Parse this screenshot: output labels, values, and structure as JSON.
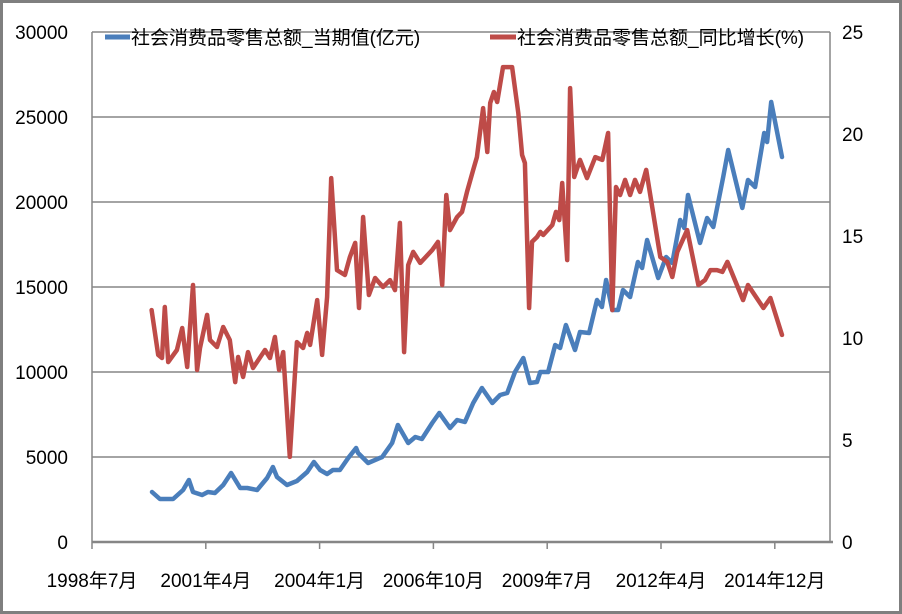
{
  "chart_data": {
    "type": "line",
    "title": "",
    "legend_position": "top",
    "grid": true,
    "x_axis": {
      "ticks": [
        {
          "value": 1998.5,
          "label": "1998年7月"
        },
        {
          "value": 2001.25,
          "label": "2001年4月"
        },
        {
          "value": 2004.0,
          "label": "2004年1月"
        },
        {
          "value": 2006.75,
          "label": "2006年10月"
        },
        {
          "value": 2009.5,
          "label": "2009年7月"
        },
        {
          "value": 2012.25,
          "label": "2012年4月"
        },
        {
          "value": 2015.0,
          "label": "2014年12月"
        }
      ],
      "range": [
        1998.5,
        2016.33
      ]
    },
    "y_left": {
      "range": [
        0,
        30000
      ],
      "ticks": [
        "0",
        "5000",
        "10000",
        "15000",
        "20000",
        "25000",
        "30000"
      ]
    },
    "y_right": {
      "range": [
        0,
        25
      ],
      "ticks": [
        "0",
        "5",
        "10",
        "15",
        "20",
        "25"
      ]
    },
    "colors": {
      "retail": "#4a7ebb",
      "growth": "#be4b48",
      "grid": "#868686"
    },
    "series": [
      {
        "name": "社会消费品零售总额_当期值(亿元)",
        "axis": "left",
        "color": "#4a7ebb",
        "points": [
          [
            1999.95,
            2941
          ],
          [
            2000.14,
            2529
          ],
          [
            2000.46,
            2529
          ],
          [
            2000.7,
            3059
          ],
          [
            2000.84,
            3647
          ],
          [
            2000.94,
            2941
          ],
          [
            2001.16,
            2765
          ],
          [
            2001.3,
            2941
          ],
          [
            2001.47,
            2882
          ],
          [
            2001.67,
            3353
          ],
          [
            2001.86,
            4059
          ],
          [
            2002.08,
            3176
          ],
          [
            2002.25,
            3176
          ],
          [
            2002.49,
            3059
          ],
          [
            2002.73,
            3765
          ],
          [
            2002.87,
            4412
          ],
          [
            2002.97,
            3824
          ],
          [
            2003.21,
            3353
          ],
          [
            2003.45,
            3588
          ],
          [
            2003.7,
            4118
          ],
          [
            2003.86,
            4706
          ],
          [
            2004.01,
            4235
          ],
          [
            2004.18,
            4000
          ],
          [
            2004.32,
            4235
          ],
          [
            2004.49,
            4235
          ],
          [
            2004.69,
            4941
          ],
          [
            2004.88,
            5529
          ],
          [
            2004.93,
            5235
          ],
          [
            2005.17,
            4647
          ],
          [
            2005.51,
            5000
          ],
          [
            2005.75,
            5823
          ],
          [
            2005.89,
            6882
          ],
          [
            2006.14,
            5823
          ],
          [
            2006.31,
            6176
          ],
          [
            2006.47,
            6059
          ],
          [
            2006.72,
            7000
          ],
          [
            2006.89,
            7588
          ],
          [
            2007.15,
            6706
          ],
          [
            2007.32,
            7176
          ],
          [
            2007.51,
            7059
          ],
          [
            2007.71,
            8176
          ],
          [
            2007.92,
            9059
          ],
          [
            2008.17,
            8176
          ],
          [
            2008.36,
            8647
          ],
          [
            2008.53,
            8765
          ],
          [
            2008.72,
            10000
          ],
          [
            2008.92,
            10823
          ],
          [
            2009.08,
            9353
          ],
          [
            2009.25,
            9412
          ],
          [
            2009.33,
            10000
          ],
          [
            2009.52,
            10000
          ],
          [
            2009.69,
            11588
          ],
          [
            2009.81,
            11412
          ],
          [
            2009.95,
            12765
          ],
          [
            2010.17,
            11294
          ],
          [
            2010.29,
            12353
          ],
          [
            2010.51,
            12294
          ],
          [
            2010.7,
            14235
          ],
          [
            2010.82,
            13823
          ],
          [
            2010.92,
            15412
          ],
          [
            2011.07,
            13647
          ],
          [
            2011.21,
            13647
          ],
          [
            2011.33,
            14824
          ],
          [
            2011.5,
            14412
          ],
          [
            2011.69,
            16470
          ],
          [
            2011.79,
            16117
          ],
          [
            2011.91,
            17764
          ],
          [
            2012.18,
            15529
          ],
          [
            2012.37,
            16764
          ],
          [
            2012.52,
            16411
          ],
          [
            2012.71,
            18941
          ],
          [
            2012.81,
            18470
          ],
          [
            2012.9,
            20411
          ],
          [
            2013.19,
            17588
          ],
          [
            2013.36,
            19058
          ],
          [
            2013.51,
            18529
          ],
          [
            2013.75,
            21470
          ],
          [
            2013.87,
            23058
          ],
          [
            2014.21,
            19647
          ],
          [
            2014.35,
            21293
          ],
          [
            2014.52,
            20882
          ],
          [
            2014.74,
            24058
          ],
          [
            2014.81,
            23529
          ],
          [
            2014.91,
            25882
          ],
          [
            2015.17,
            22646
          ]
        ]
      },
      {
        "name": "社会消费品零售总额_同比增长(%)",
        "axis": "right",
        "color": "#be4b48",
        "points": [
          [
            1999.94,
            11.37
          ],
          [
            2000.1,
            9.17
          ],
          [
            2000.19,
            9.02
          ],
          [
            2000.26,
            11.52
          ],
          [
            2000.34,
            8.82
          ],
          [
            2000.55,
            9.41
          ],
          [
            2000.68,
            10.49
          ],
          [
            2000.8,
            8.58
          ],
          [
            2000.94,
            12.6
          ],
          [
            2001.04,
            8.43
          ],
          [
            2001.11,
            9.51
          ],
          [
            2001.28,
            11.13
          ],
          [
            2001.35,
            9.9
          ],
          [
            2001.52,
            9.56
          ],
          [
            2001.67,
            10.54
          ],
          [
            2001.83,
            9.9
          ],
          [
            2001.96,
            7.84
          ],
          [
            2002.03,
            9.07
          ],
          [
            2002.15,
            8.09
          ],
          [
            2002.27,
            9.31
          ],
          [
            2002.39,
            8.53
          ],
          [
            2002.68,
            9.41
          ],
          [
            2002.8,
            9.02
          ],
          [
            2002.92,
            10.05
          ],
          [
            2003.02,
            8.43
          ],
          [
            2003.12,
            9.31
          ],
          [
            2003.28,
            4.17
          ],
          [
            2003.45,
            9.8
          ],
          [
            2003.6,
            9.51
          ],
          [
            2003.7,
            10.25
          ],
          [
            2003.77,
            9.66
          ],
          [
            2003.94,
            11.86
          ],
          [
            2004.06,
            9.17
          ],
          [
            2004.18,
            12.01
          ],
          [
            2004.28,
            17.84
          ],
          [
            2004.42,
            13.33
          ],
          [
            2004.61,
            13.09
          ],
          [
            2004.73,
            13.97
          ],
          [
            2004.86,
            14.66
          ],
          [
            2004.95,
            11.47
          ],
          [
            2005.05,
            15.93
          ],
          [
            2005.19,
            12.11
          ],
          [
            2005.34,
            12.94
          ],
          [
            2005.53,
            12.5
          ],
          [
            2005.7,
            12.84
          ],
          [
            2005.82,
            12.35
          ],
          [
            2005.94,
            15.64
          ],
          [
            2006.04,
            9.31
          ],
          [
            2006.14,
            13.58
          ],
          [
            2006.26,
            14.22
          ],
          [
            2006.43,
            13.68
          ],
          [
            2006.72,
            14.31
          ],
          [
            2006.86,
            14.71
          ],
          [
            2006.96,
            12.6
          ],
          [
            2007.06,
            17.01
          ],
          [
            2007.15,
            15.29
          ],
          [
            2007.32,
            15.93
          ],
          [
            2007.44,
            16.18
          ],
          [
            2007.56,
            17.16
          ],
          [
            2007.71,
            18.24
          ],
          [
            2007.8,
            18.87
          ],
          [
            2007.95,
            21.27
          ],
          [
            2008.05,
            19.12
          ],
          [
            2008.12,
            21.52
          ],
          [
            2008.21,
            22.06
          ],
          [
            2008.29,
            21.57
          ],
          [
            2008.43,
            23.28
          ],
          [
            2008.65,
            23.28
          ],
          [
            2008.8,
            21.03
          ],
          [
            2008.89,
            18.97
          ],
          [
            2008.96,
            18.58
          ],
          [
            2009.06,
            11.47
          ],
          [
            2009.13,
            14.71
          ],
          [
            2009.25,
            14.95
          ],
          [
            2009.33,
            15.2
          ],
          [
            2009.4,
            15.05
          ],
          [
            2009.62,
            15.54
          ],
          [
            2009.71,
            16.18
          ],
          [
            2009.79,
            15.78
          ],
          [
            2009.86,
            17.6
          ],
          [
            2009.98,
            13.82
          ],
          [
            2010.05,
            22.25
          ],
          [
            2010.15,
            17.89
          ],
          [
            2010.29,
            18.73
          ],
          [
            2010.46,
            17.84
          ],
          [
            2010.66,
            18.87
          ],
          [
            2010.83,
            18.73
          ],
          [
            2010.97,
            20.05
          ],
          [
            2011.07,
            11.37
          ],
          [
            2011.16,
            17.4
          ],
          [
            2011.26,
            17.01
          ],
          [
            2011.38,
            17.75
          ],
          [
            2011.5,
            17.01
          ],
          [
            2011.62,
            17.75
          ],
          [
            2011.74,
            17.16
          ],
          [
            2011.89,
            18.24
          ],
          [
            2012.23,
            13.97
          ],
          [
            2012.4,
            13.73
          ],
          [
            2012.52,
            12.99
          ],
          [
            2012.64,
            14.22
          ],
          [
            2012.88,
            15.29
          ],
          [
            2013.15,
            12.6
          ],
          [
            2013.31,
            12.84
          ],
          [
            2013.44,
            13.33
          ],
          [
            2013.6,
            13.33
          ],
          [
            2013.73,
            13.24
          ],
          [
            2013.85,
            13.73
          ],
          [
            2014.23,
            11.86
          ],
          [
            2014.35,
            12.6
          ],
          [
            2014.72,
            11.47
          ],
          [
            2014.89,
            11.96
          ],
          [
            2015.17,
            10.15
          ]
        ]
      }
    ]
  }
}
